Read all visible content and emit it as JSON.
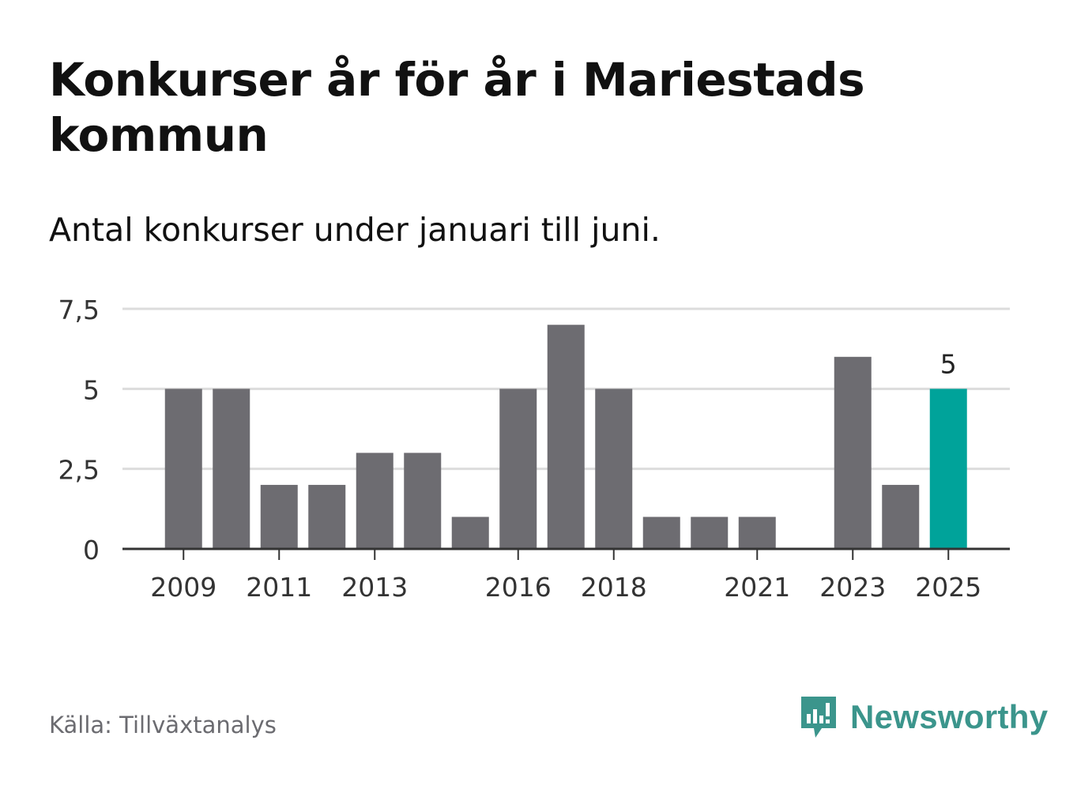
{
  "title": "Konkurser år för år i Mariestads kommun",
  "subtitle": "Antal konkurser under januari till juni.",
  "source": "Källa: Tillväxtanalys",
  "brand": {
    "name": "Newsworthy",
    "icon": "newsworthy-logo-icon",
    "color": "#3b958c"
  },
  "chart_data": {
    "type": "bar",
    "categories": [
      "2009",
      "2010",
      "2011",
      "2012",
      "2013",
      "2014",
      "2015",
      "2016",
      "2017",
      "2018",
      "2019",
      "2020",
      "2021",
      "2022",
      "2023",
      "2024",
      "2025"
    ],
    "values": [
      5,
      5,
      2,
      2,
      3,
      3,
      1,
      5,
      7,
      5,
      1,
      1,
      1,
      0,
      6,
      2,
      5
    ],
    "x_tick_labels": [
      "2009",
      "2011",
      "2013",
      "2016",
      "2018",
      "2021",
      "2023",
      "2025"
    ],
    "y_ticks": [
      0,
      2.5,
      5,
      7.5
    ],
    "y_tick_labels": [
      "0",
      "2,5",
      "5",
      "7,5"
    ],
    "ylim": [
      0,
      7.5
    ],
    "grid": true,
    "highlight": {
      "category": "2025",
      "label": "5"
    },
    "colors": {
      "bar": "#6d6c71",
      "highlight": "#00a39a",
      "grid": "#dcdcdc",
      "axis": "#333333"
    }
  }
}
